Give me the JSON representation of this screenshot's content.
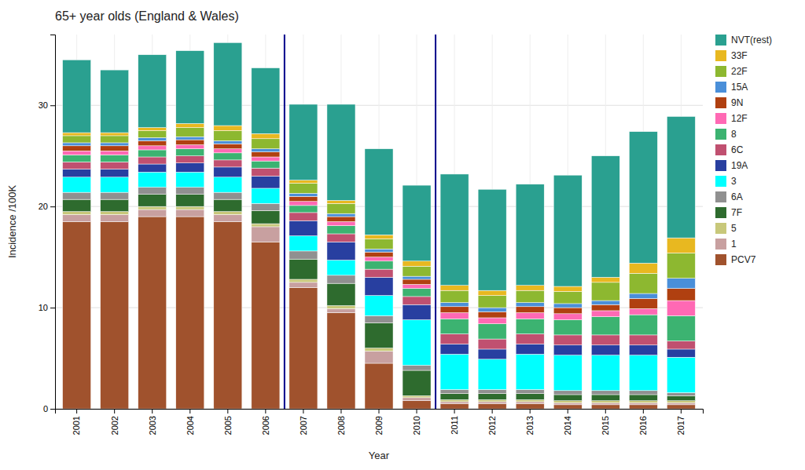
{
  "chart_data": {
    "type": "bar",
    "stacked": true,
    "title": "65+ year olds (England & Wales)",
    "xlabel": "Year",
    "ylabel": "Incidence /100K",
    "categories": [
      2001,
      2002,
      2003,
      2004,
      2005,
      2006,
      2007,
      2008,
      2009,
      2010,
      2011,
      2012,
      2013,
      2014,
      2015,
      2016,
      2017
    ],
    "ylim": [
      0,
      37
    ],
    "yticks": [
      0,
      10,
      20,
      30
    ],
    "grid": true,
    "legend": "right",
    "vlines": {
      "values": [
        2006.5,
        2010.5
      ],
      "color": "#00008B"
    },
    "series": [
      {
        "name": "PCV7",
        "color": "#A0522D",
        "values": [
          18.5,
          18.5,
          19.0,
          19.0,
          18.5,
          16.5,
          12.0,
          9.5,
          4.5,
          0.8,
          0.5,
          0.5,
          0.5,
          0.4,
          0.4,
          0.4,
          0.4
        ]
      },
      {
        "name": "1",
        "color": "#C8A0A0",
        "values": [
          0.7,
          0.7,
          0.7,
          0.7,
          0.7,
          1.5,
          0.5,
          0.4,
          1.2,
          0.3,
          0.2,
          0.2,
          0.2,
          0.2,
          0.2,
          0.2,
          0.2
        ]
      },
      {
        "name": "5",
        "color": "#C8C87A",
        "values": [
          0.3,
          0.3,
          0.3,
          0.3,
          0.3,
          0.3,
          0.3,
          0.3,
          0.3,
          0.2,
          0.2,
          0.2,
          0.2,
          0.2,
          0.2,
          0.2,
          0.2
        ]
      },
      {
        "name": "7F",
        "color": "#2E6B2E",
        "values": [
          1.2,
          1.2,
          1.2,
          1.2,
          1.2,
          1.3,
          2.0,
          2.2,
          2.5,
          2.5,
          0.6,
          0.6,
          0.6,
          0.6,
          0.6,
          0.6,
          0.5
        ]
      },
      {
        "name": "6A",
        "color": "#909090",
        "values": [
          0.7,
          0.7,
          0.7,
          0.7,
          0.7,
          0.7,
          0.8,
          0.8,
          0.7,
          0.5,
          0.4,
          0.4,
          0.4,
          0.4,
          0.4,
          0.4,
          0.3
        ]
      },
      {
        "name": "3",
        "color": "#00FFFF",
        "values": [
          1.5,
          1.5,
          1.5,
          1.5,
          1.5,
          1.5,
          1.5,
          1.5,
          2.0,
          4.5,
          3.5,
          3.0,
          3.5,
          3.5,
          3.5,
          3.5,
          3.5
        ]
      },
      {
        "name": "19A",
        "color": "#283FA0",
        "values": [
          0.8,
          0.8,
          0.8,
          0.9,
          1.0,
          1.2,
          1.5,
          1.8,
          1.8,
          1.5,
          1.0,
          1.0,
          1.0,
          1.0,
          1.0,
          1.0,
          0.8
        ]
      },
      {
        "name": "6C",
        "color": "#C05070",
        "values": [
          0.7,
          0.7,
          0.7,
          0.7,
          0.7,
          0.8,
          0.8,
          0.8,
          0.8,
          0.8,
          1.0,
          1.0,
          1.0,
          1.0,
          1.0,
          1.0,
          0.8
        ]
      },
      {
        "name": "8",
        "color": "#3CB371",
        "values": [
          0.7,
          0.7,
          0.7,
          0.7,
          0.7,
          0.7,
          0.7,
          0.8,
          0.8,
          0.8,
          1.5,
          1.5,
          1.5,
          1.5,
          1.8,
          2.0,
          2.5
        ]
      },
      {
        "name": "12F",
        "color": "#FF69B4",
        "values": [
          0.4,
          0.4,
          0.4,
          0.4,
          0.4,
          0.4,
          0.4,
          0.4,
          0.4,
          0.4,
          0.6,
          0.6,
          0.6,
          0.6,
          0.6,
          0.6,
          1.5
        ]
      },
      {
        "name": "9N",
        "color": "#B04010",
        "values": [
          0.5,
          0.5,
          0.5,
          0.5,
          0.5,
          0.5,
          0.5,
          0.5,
          0.5,
          0.5,
          0.6,
          0.6,
          0.6,
          0.6,
          0.6,
          1.0,
          1.2
        ]
      },
      {
        "name": "15A",
        "color": "#4A8FD9",
        "values": [
          0.3,
          0.3,
          0.3,
          0.3,
          0.3,
          0.3,
          0.3,
          0.3,
          0.3,
          0.3,
          0.4,
          0.4,
          0.4,
          0.4,
          0.4,
          0.5,
          1.0
        ]
      },
      {
        "name": "22F",
        "color": "#8DB830",
        "values": [
          0.7,
          0.7,
          0.7,
          0.9,
          1.0,
          1.0,
          1.0,
          1.0,
          1.0,
          1.0,
          1.2,
          1.2,
          1.2,
          1.2,
          1.8,
          2.0,
          2.5
        ]
      },
      {
        "name": "33F",
        "color": "#E8B820",
        "values": [
          0.3,
          0.3,
          0.3,
          0.4,
          0.5,
          0.5,
          0.3,
          0.3,
          0.4,
          0.5,
          0.5,
          0.5,
          0.5,
          0.5,
          0.5,
          1.0,
          1.5
        ]
      },
      {
        "name": "NVT(rest)",
        "color": "#2AA090",
        "values": [
          7.2,
          6.2,
          7.2,
          7.2,
          8.2,
          6.5,
          7.5,
          9.5,
          8.5,
          7.5,
          11.0,
          10.0,
          10.0,
          11.0,
          12.0,
          13.0,
          12.0
        ]
      }
    ]
  }
}
